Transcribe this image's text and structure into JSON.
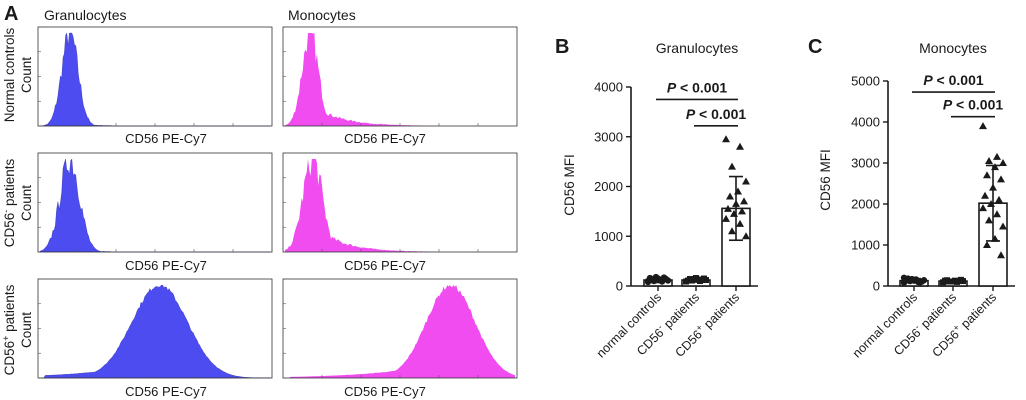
{
  "panel_a": {
    "letter": "A",
    "columns": [
      "Granulocytes",
      "Monocytes"
    ],
    "rows": [
      {
        "line1": "Normal controls",
        "line2": "Count"
      },
      {
        "line1_pre": "CD56",
        "line1_sup": "-",
        "line1_post": " patients",
        "line2": "Count"
      },
      {
        "line1_pre": "CD56",
        "line1_sup": "+",
        "line1_post": " patients",
        "line2": "Count"
      }
    ],
    "x_axis_label": "CD56 PE-Cy7",
    "colors": {
      "granulocytes": "#4c4cf0",
      "monocytes": "#f04cf0"
    },
    "histogram_shapes": [
      {
        "row": 0,
        "col": 0,
        "peak": 0.13,
        "spread": 0.05,
        "tail": 0.02,
        "noise": 0.3
      },
      {
        "row": 0,
        "col": 1,
        "peak": 0.11,
        "spread": 0.05,
        "tail": 0.25,
        "noise": 0.3
      },
      {
        "row": 1,
        "col": 0,
        "peak": 0.13,
        "spread": 0.06,
        "tail": 0.02,
        "noise": 0.35
      },
      {
        "row": 1,
        "col": 1,
        "peak": 0.12,
        "spread": 0.06,
        "tail": 0.3,
        "noise": 0.35
      },
      {
        "row": 2,
        "col": 0,
        "peak": 0.52,
        "spread": 0.17,
        "tail": 0.1,
        "noise": 0.05
      },
      {
        "row": 2,
        "col": 1,
        "peak": 0.72,
        "spread": 0.15,
        "tail": 0.25,
        "noise": 0.06
      }
    ]
  },
  "chart_data": [
    {
      "type": "bar",
      "letter": "B",
      "title": "Granulocytes",
      "xlabel": "",
      "ylabel": "CD56 MFI",
      "ylim": [
        0,
        4000
      ],
      "yticks": [
        "0",
        "1000",
        "2000",
        "3000",
        "4000"
      ],
      "ytick_values": [
        0,
        1000,
        2000,
        3000,
        4000
      ],
      "categories": [
        {
          "pre": "normal controls",
          "sup": "",
          "post": ""
        },
        {
          "pre": "CD56",
          "sup": "-",
          "post": " patients"
        },
        {
          "pre": "CD56",
          "sup": "+",
          "post": " patients"
        }
      ],
      "means": [
        120,
        120,
        1560
      ],
      "sd": [
        50,
        40,
        640
      ],
      "points": [
        [
          80,
          90,
          100,
          110,
          120,
          130,
          140,
          150,
          160,
          170,
          180,
          100,
          120,
          140
        ],
        [
          90,
          100,
          110,
          120,
          130,
          140,
          150,
          160,
          110,
          130
        ],
        [
          2950,
          2800,
          2400,
          2100,
          1900,
          1800,
          1700,
          1650,
          1550,
          1500,
          1450,
          1350,
          1250,
          1100,
          1000
        ]
      ],
      "markers": [
        "circle",
        "square",
        "triangle"
      ],
      "brackets": [
        {
          "from": 0,
          "to": 2,
          "label": "P < 0.001",
          "y": 3750
        },
        {
          "from": 1,
          "to": 2,
          "label": "P < 0.001",
          "y": 3220
        }
      ]
    },
    {
      "type": "bar",
      "letter": "C",
      "title": "Monocytes",
      "xlabel": "",
      "ylabel": "CD56 MFI",
      "ylim": [
        0,
        5000
      ],
      "yticks": [
        "0",
        "1000",
        "2000",
        "3000",
        "4000",
        "5000"
      ],
      "ytick_values": [
        0,
        1000,
        2000,
        3000,
        4000,
        5000
      ],
      "categories": [
        {
          "pre": "normal controls",
          "sup": "",
          "post": ""
        },
        {
          "pre": "CD56",
          "sup": "-",
          "post": " patients"
        },
        {
          "pre": "CD56",
          "sup": "+",
          "post": " patients"
        }
      ],
      "means": [
        130,
        120,
        2020
      ],
      "sd": [
        50,
        40,
        920
      ],
      "points": [
        [
          80,
          100,
          120,
          140,
          160,
          180,
          110,
          130,
          150,
          90,
          170,
          200
        ],
        [
          90,
          100,
          110,
          120,
          130,
          140,
          150,
          110,
          130
        ],
        [
          3900,
          3150,
          3050,
          3000,
          2900,
          2700,
          2600,
          2400,
          2200,
          2100,
          2000,
          1900,
          1750,
          1600,
          1450,
          1150,
          1000,
          750
        ]
      ],
      "markers": [
        "circle",
        "square",
        "triangle"
      ],
      "brackets": [
        {
          "from": 0,
          "to": 2,
          "label": "P < 0.001",
          "y": 4730
        },
        {
          "from": 1,
          "to": 2,
          "label": "P < 0.001",
          "y": 4130
        }
      ]
    }
  ]
}
